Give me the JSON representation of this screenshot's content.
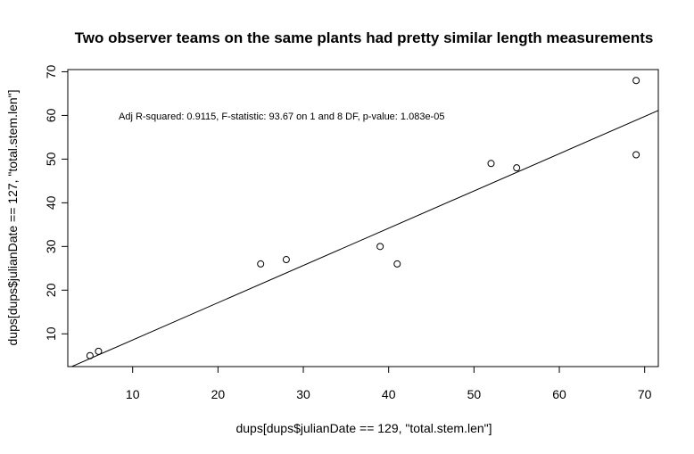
{
  "chart_data": {
    "type": "scatter",
    "title": "Two observer teams on the same plants had pretty similar length measurements",
    "xlabel": "dups[dups$julianDate == 129, \"total.stem.len\"]",
    "ylabel": "dups[dups$julianDate == 127, \"total.stem.len\"]",
    "annotation": "Adj R-squared:  0.9115, F-statistic: 93.67 on 1 and 8 DF,  p-value: 1.083e-05",
    "xlim": [
      2.4,
      71.6
    ],
    "ylim": [
      2.5,
      70.5
    ],
    "xticks": [
      10,
      20,
      30,
      40,
      50,
      60,
      70
    ],
    "yticks": [
      10,
      20,
      30,
      40,
      50,
      60,
      70
    ],
    "points": [
      {
        "x": 5,
        "y": 5
      },
      {
        "x": 6,
        "y": 6
      },
      {
        "x": 25,
        "y": 26
      },
      {
        "x": 28,
        "y": 27
      },
      {
        "x": 39,
        "y": 30
      },
      {
        "x": 41,
        "y": 26
      },
      {
        "x": 52,
        "y": 49
      },
      {
        "x": 55,
        "y": 48
      },
      {
        "x": 69,
        "y": 68
      },
      {
        "x": 69,
        "y": 51
      }
    ],
    "fit_line": {
      "intercept": 0.06,
      "slope": 0.853
    },
    "grid": false,
    "legend": "none"
  }
}
